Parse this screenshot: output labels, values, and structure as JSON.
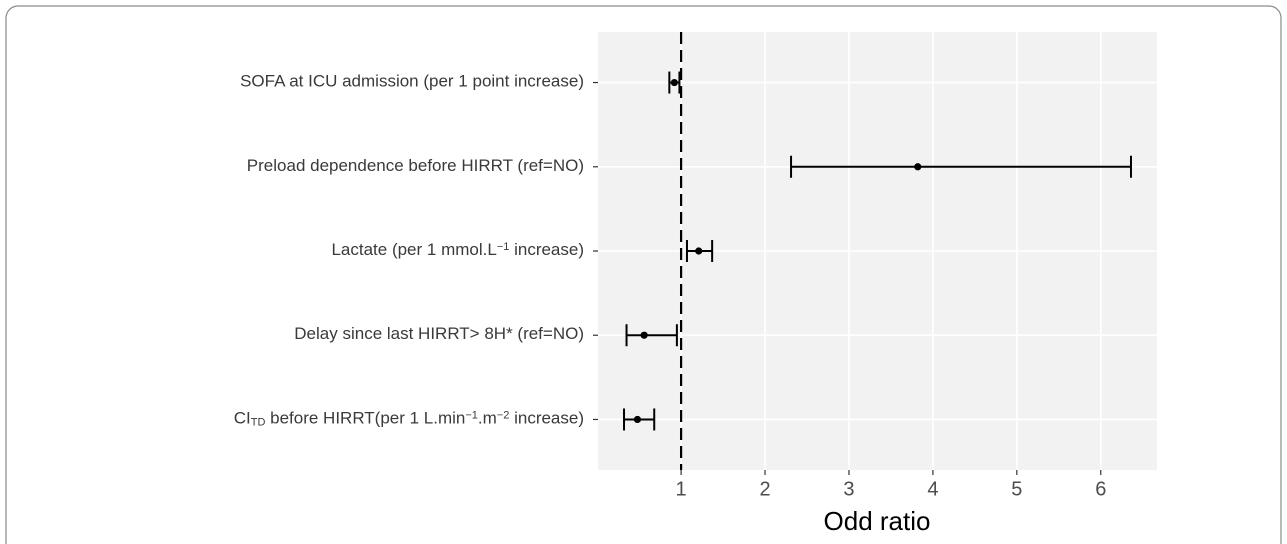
{
  "chart_data": {
    "type": "forest",
    "xlabel": "Odd ratio",
    "categories": [
      [
        "SOFA at ICU admission (per 1 point increase)"
      ],
      [
        "Preload dependence before HIRRT (ref=NO)"
      ],
      [
        "Lactate (per 1 mmol.L",
        {
          "sup": "−1"
        },
        " increase)"
      ],
      [
        "Delay since last HIRRT> 8H* (ref=NO)"
      ],
      [
        "CI",
        {
          "sub": "TD"
        },
        " before HIRRT(per 1 L.min",
        {
          "sup": "−1"
        },
        ".m",
        {
          "sup": "−2"
        },
        " increase)"
      ]
    ],
    "values": [
      0.92,
      3.82,
      1.21,
      0.56,
      0.48
    ],
    "lower": [
      0.86,
      2.31,
      1.07,
      0.35,
      0.32
    ],
    "upper": [
      0.98,
      6.36,
      1.37,
      0.95,
      0.68
    ],
    "reference": 1,
    "xlim": [
      0.01,
      6.67
    ],
    "xticks": [
      1,
      2,
      3,
      4,
      5,
      6
    ],
    "grid": true,
    "color": "#000000"
  }
}
